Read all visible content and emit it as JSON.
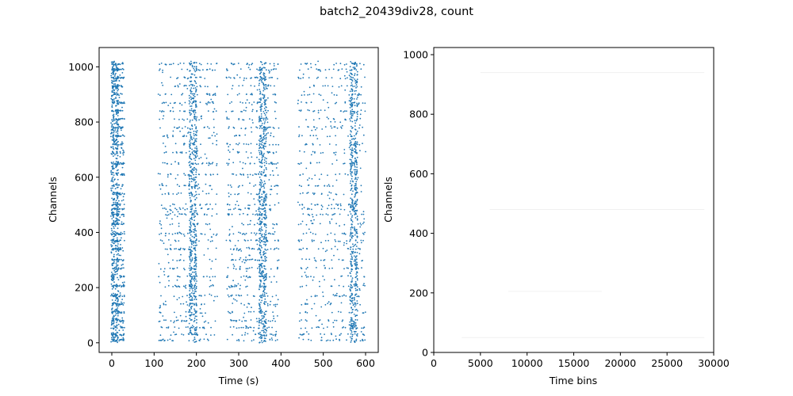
{
  "title": "batch2_20439div28, count",
  "colors": {
    "accent": "#1f77b4",
    "axis": "#000000",
    "background": "#ffffff"
  },
  "chart_data": [
    {
      "type": "scatter",
      "name": "raster",
      "xlabel": "Time (s)",
      "ylabel": "Channels",
      "xlim": [
        -30,
        630
      ],
      "ylim": [
        -35,
        1070
      ],
      "xticks": [
        0,
        100,
        200,
        300,
        400,
        500,
        600
      ],
      "yticks": [
        0,
        200,
        400,
        600,
        800,
        1000
      ],
      "grid": false,
      "burst_times": [
        0,
        10,
        185,
        195,
        350,
        360,
        565,
        575
      ],
      "active_windows": [
        [
          0,
          30
        ],
        [
          110,
          250
        ],
        [
          270,
          395
        ],
        [
          440,
          600
        ]
      ],
      "dense_channels": [
        1010,
        990,
        960,
        930,
        900,
        870,
        840,
        810,
        780,
        750,
        720,
        690,
        650,
        610,
        570,
        540,
        500,
        485,
        465,
        430,
        395,
        370,
        340,
        300,
        270,
        240,
        205,
        170,
        140,
        110,
        80,
        55,
        30,
        10
      ],
      "description_points": [
        [
          0,
          1010
        ],
        [
          5,
          900
        ],
        [
          10,
          780
        ],
        [
          3,
          600
        ],
        [
          8,
          485
        ],
        [
          2,
          400
        ],
        [
          6,
          300
        ],
        [
          4,
          200
        ],
        [
          9,
          100
        ],
        [
          5,
          20
        ],
        [
          120,
          980
        ],
        [
          150,
          870
        ],
        [
          180,
          760
        ],
        [
          200,
          1015
        ],
        [
          230,
          650
        ],
        [
          140,
          480
        ],
        [
          160,
          400
        ],
        [
          190,
          300
        ],
        [
          170,
          205
        ],
        [
          200,
          50
        ],
        [
          290,
          1010
        ],
        [
          320,
          880
        ],
        [
          350,
          600
        ],
        [
          375,
          480
        ],
        [
          300,
          400
        ],
        [
          340,
          300
        ],
        [
          360,
          205
        ],
        [
          380,
          80
        ],
        [
          460,
          1010
        ],
        [
          500,
          880
        ],
        [
          550,
          700
        ],
        [
          580,
          480
        ],
        [
          470,
          400
        ],
        [
          520,
          300
        ],
        [
          560,
          205
        ],
        [
          590,
          40
        ]
      ]
    },
    {
      "type": "heatmap",
      "name": "binned",
      "xlabel": "Time bins",
      "ylabel": "Channels",
      "xlim": [
        0,
        30000
      ],
      "ylim": [
        0,
        1024
      ],
      "xticks": [
        0,
        5000,
        10000,
        15000,
        20000,
        25000,
        30000
      ],
      "yticks": [
        0,
        200,
        400,
        600,
        800,
        1000
      ],
      "grid": false,
      "faint_bands": [
        {
          "channel": 50,
          "start": 3000,
          "end": 29000
        },
        {
          "channel": 205,
          "start": 8000,
          "end": 18000
        },
        {
          "channel": 480,
          "start": 6000,
          "end": 29000
        },
        {
          "channel": 940,
          "start": 5000,
          "end": 29000
        }
      ]
    }
  ]
}
